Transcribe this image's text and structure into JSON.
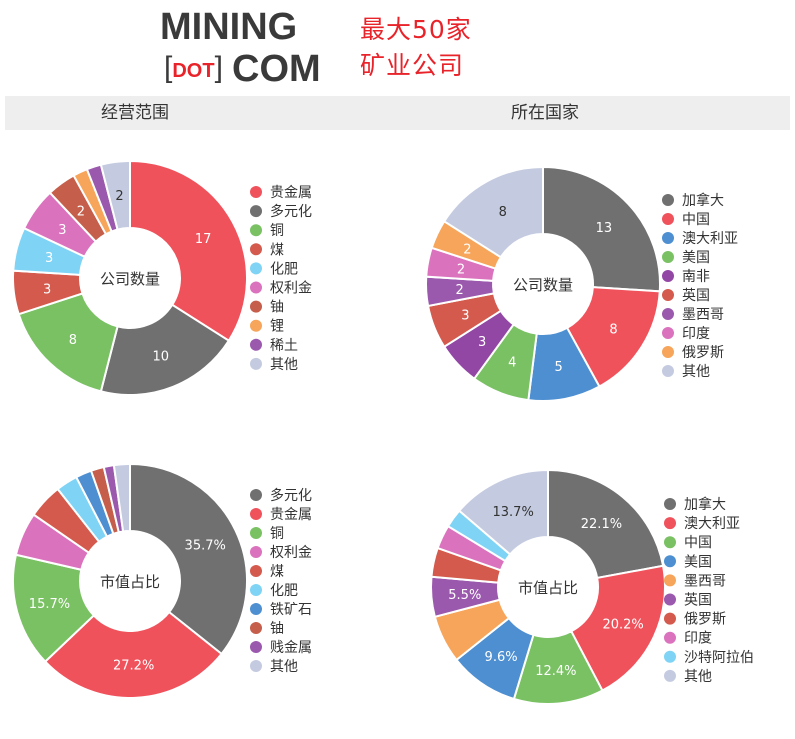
{
  "logo": {
    "line1": "MINING",
    "dot": "DOT",
    "line2": "COM"
  },
  "tagline": {
    "line1": "最大50家",
    "line2": "矿业公司"
  },
  "headers": {
    "left": "经营范围",
    "right": "所在国家"
  },
  "chart_data": [
    {
      "type": "pie",
      "title": "公司数量",
      "slices": [
        {
          "label": "贵金属",
          "value": 17,
          "color": "#f0525c",
          "text": "17"
        },
        {
          "label": "多元化",
          "value": 10,
          "color": "#707070",
          "text": "10"
        },
        {
          "label": "铜",
          "value": 8,
          "color": "#79c163",
          "text": "8"
        },
        {
          "label": "煤",
          "value": 3,
          "color": "#d35a4d",
          "text": "3"
        },
        {
          "label": "化肥",
          "value": 3,
          "color": "#7fd3f5",
          "text": "3"
        },
        {
          "label": "权利金",
          "value": 3,
          "color": "#db72bd",
          "text": "3"
        },
        {
          "label": "铀",
          "value": 2,
          "color": "#c55e4a",
          "text": "2"
        },
        {
          "label": "锂",
          "value": 1,
          "color": "#f6a55a",
          "text": ""
        },
        {
          "label": "稀土",
          "value": 1,
          "color": "#9b59ad",
          "text": ""
        },
        {
          "label": "其他",
          "value": 2,
          "color": "#c4cbe0",
          "text": "2"
        }
      ]
    },
    {
      "type": "pie",
      "title": "公司数量",
      "slices": [
        {
          "label": "加拿大",
          "value": 13,
          "color": "#707070",
          "text": "13"
        },
        {
          "label": "中国",
          "value": 8,
          "color": "#f0525c",
          "text": "8"
        },
        {
          "label": "澳大利亚",
          "value": 5,
          "color": "#4d8fd1",
          "text": "5"
        },
        {
          "label": "美国",
          "value": 4,
          "color": "#79c163",
          "text": "4"
        },
        {
          "label": "南非",
          "value": 3,
          "color": "#9347a5",
          "text": "3"
        },
        {
          "label": "英国",
          "value": 3,
          "color": "#d35a4d",
          "text": "3"
        },
        {
          "label": "墨西哥",
          "value": 2,
          "color": "#9b59ad",
          "text": "2"
        },
        {
          "label": "印度",
          "value": 2,
          "color": "#db72bd",
          "text": "2"
        },
        {
          "label": "俄罗斯",
          "value": 2,
          "color": "#f6a55a",
          "text": "2"
        },
        {
          "label": "其他",
          "value": 8,
          "color": "#c4cbe0",
          "text": "8"
        }
      ]
    },
    {
      "type": "pie",
      "title": "市值占比",
      "slices": [
        {
          "label": "多元化",
          "value": 35.7,
          "color": "#707070",
          "text": "35.7%"
        },
        {
          "label": "贵金属",
          "value": 27.2,
          "color": "#f0525c",
          "text": "27.2%"
        },
        {
          "label": "铜",
          "value": 15.7,
          "color": "#79c163",
          "text": "15.7%"
        },
        {
          "label": "权利金",
          "value": 6.0,
          "color": "#db72bd",
          "text": ""
        },
        {
          "label": "煤",
          "value": 4.8,
          "color": "#d35a4d",
          "text": ""
        },
        {
          "label": "化肥",
          "value": 3.0,
          "color": "#7fd3f5",
          "text": ""
        },
        {
          "label": "铁矿石",
          "value": 2.2,
          "color": "#4d8fd1",
          "text": ""
        },
        {
          "label": "铀",
          "value": 1.8,
          "color": "#c55e4a",
          "text": ""
        },
        {
          "label": "贱金属",
          "value": 1.4,
          "color": "#9b59ad",
          "text": ""
        },
        {
          "label": "其他",
          "value": 2.2,
          "color": "#c4cbe0",
          "text": ""
        }
      ]
    },
    {
      "type": "pie",
      "title": "市值占比",
      "slices": [
        {
          "label": "加拿大",
          "value": 22.1,
          "color": "#707070",
          "text": "22.1%"
        },
        {
          "label": "澳大利亚",
          "value": 20.2,
          "color": "#f0525c",
          "text": "20.2%"
        },
        {
          "label": "中国",
          "value": 12.4,
          "color": "#79c163",
          "text": "12.4%"
        },
        {
          "label": "美国",
          "value": 9.6,
          "color": "#4d8fd1",
          "text": "9.6%"
        },
        {
          "label": "墨西哥",
          "value": 6.6,
          "color": "#f6a55a",
          "text": ""
        },
        {
          "label": "英国",
          "value": 5.5,
          "color": "#9b59ad",
          "text": "5.5%"
        },
        {
          "label": "俄罗斯",
          "value": 4.0,
          "color": "#d35a4d",
          "text": ""
        },
        {
          "label": "印度",
          "value": 3.3,
          "color": "#db72bd",
          "text": ""
        },
        {
          "label": "沙特阿拉伯",
          "value": 2.6,
          "color": "#7fd3f5",
          "text": ""
        },
        {
          "label": "其他",
          "value": 13.7,
          "color": "#c4cbe0",
          "text": "13.7%"
        }
      ]
    }
  ]
}
